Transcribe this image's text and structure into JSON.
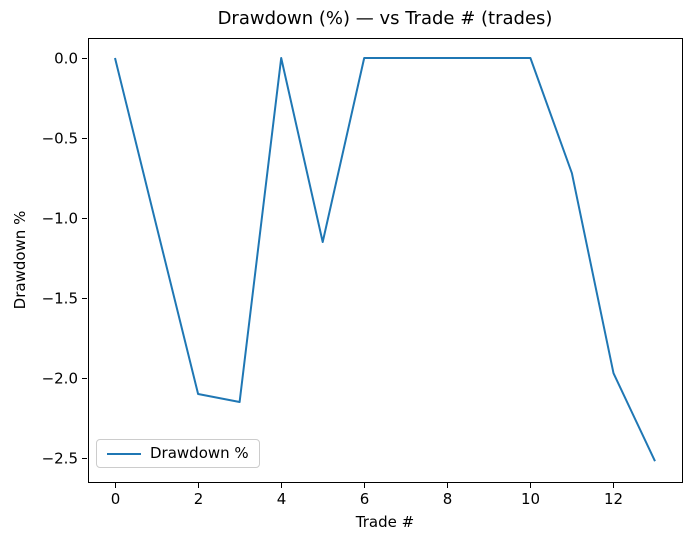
{
  "chart_data": {
    "type": "line",
    "title": "Drawdown (%) — vs Trade # (trades)",
    "xlabel": "Trade #",
    "ylabel": "Drawdown %",
    "x": [
      0,
      1,
      2,
      3,
      4,
      5,
      6,
      7,
      8,
      9,
      10,
      11,
      12,
      13
    ],
    "series": [
      {
        "name": "Drawdown %",
        "color": "#1f77b4",
        "values": [
          0.0,
          -1.05,
          -2.1,
          -2.15,
          0.0,
          -1.15,
          0.0,
          0.0,
          0.0,
          0.0,
          0.0,
          -0.72,
          -1.97,
          -2.52
        ]
      }
    ],
    "xlim": [
      -0.65,
      13.65
    ],
    "ylim": [
      -2.65,
      0.125
    ],
    "xticks": [
      0,
      2,
      4,
      6,
      8,
      10,
      12
    ],
    "xtick_labels": [
      "0",
      "2",
      "4",
      "6",
      "8",
      "10",
      "12"
    ],
    "yticks": [
      0.0,
      -0.5,
      -1.0,
      -1.5,
      -2.0,
      -2.5
    ],
    "ytick_labels": [
      "0.0",
      "−0.5",
      "−1.0",
      "−1.5",
      "−2.0",
      "−2.5"
    ],
    "grid": false,
    "legend": {
      "position": "lower left",
      "entries": [
        "Drawdown %"
      ]
    },
    "colors": {
      "line": "#1f77b4",
      "spines": "#000000",
      "background": "#ffffff",
      "legend_border": "#cccccc"
    }
  }
}
